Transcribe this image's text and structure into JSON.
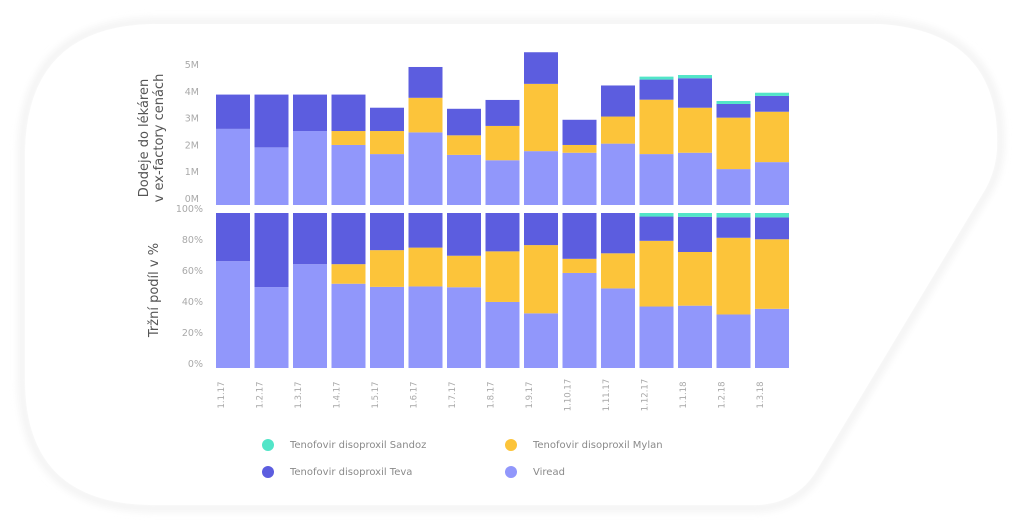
{
  "chart_data": [
    {
      "type": "bar",
      "stacked": true,
      "title": "",
      "ylabel": "Dodeje do lékáren\nv ex-factory cenách",
      "ylabel_lines": [
        "Dodeje do lékáren",
        "v ex-factory cenách"
      ],
      "ylim": [
        0,
        5
      ],
      "yticks": [
        0,
        1,
        2,
        3,
        4,
        5
      ],
      "ytick_labels": [
        "0M",
        "1M",
        "2M",
        "3M",
        "4M",
        "5M"
      ],
      "units": "millions",
      "categories": [
        "1.1.17",
        "1.2.17",
        "1.3.17",
        "1.4.17",
        "1.5.17",
        "1.6.17",
        "1.7.17",
        "1.8.17",
        "1.9.17",
        "1.10.17",
        "1.11.17",
        "1.12.17",
        "1.1.18",
        "1.2.18",
        "1.3.18"
      ],
      "series": [
        {
          "name": "Viread",
          "color": "#9197fb",
          "values": [
            2.84,
            2.15,
            2.76,
            2.24,
            1.9,
            2.71,
            1.87,
            1.67,
            2.01,
            1.95,
            2.29,
            1.9,
            1.95,
            1.34,
            1.6
          ]
        },
        {
          "name": "Tenofovir disoproxil Mylan",
          "color": "#fcc43a",
          "values": [
            0,
            0,
            0,
            0.52,
            0.86,
            1.29,
            0.73,
            1.28,
            2.51,
            0.29,
            1.01,
            2.03,
            1.68,
            1.92,
            1.88
          ]
        },
        {
          "name": "Tenofovir disoproxil Teva",
          "color": "#5c5ddf",
          "values": [
            1.28,
            1.97,
            1.36,
            1.36,
            0.87,
            1.15,
            0.99,
            0.97,
            1.18,
            0.94,
            1.16,
            0.75,
            1.1,
            0.51,
            0.59
          ]
        },
        {
          "name": "Tenofovir disoproxil Sandoz",
          "color": "#52e5c8",
          "values": [
            0,
            0,
            0,
            0,
            0,
            0,
            0,
            0,
            0,
            0,
            0,
            0.11,
            0.12,
            0.11,
            0.12
          ]
        }
      ],
      "grid": false
    },
    {
      "type": "bar",
      "stacked": true,
      "normalized": true,
      "title": "",
      "ylabel": "Tržní podíl v %",
      "ylim": [
        0,
        100
      ],
      "yticks": [
        0,
        20,
        40,
        60,
        80,
        100
      ],
      "ytick_labels": [
        "0%",
        "20%",
        "40%",
        "60%",
        "80%",
        "100%"
      ],
      "categories": [
        "1.1.17",
        "1.2.17",
        "1.3.17",
        "1.4.17",
        "1.5.17",
        "1.6.17",
        "1.7.17",
        "1.8.17",
        "1.9.17",
        "1.10.17",
        "1.11.17",
        "1.12.17",
        "1.1.18",
        "1.2.18",
        "1.3.18"
      ],
      "note": "percent shares derived from the absolute values of the first chart",
      "grid": false
    }
  ],
  "xaxis": {
    "labels": [
      "1.1.17",
      "1.2.17",
      "1.3.17",
      "1.4.17",
      "1.5.17",
      "1.6.17",
      "1.7.17",
      "1.8.17",
      "1.9.17",
      "1.10.17",
      "1.11.17",
      "1.12.17",
      "1.1.18",
      "1.2.18",
      "1.3.18"
    ]
  },
  "legend": {
    "placement": "bottom",
    "items": [
      {
        "label": "Tenofovir disoproxil Sandoz",
        "color": "#52e5c8"
      },
      {
        "label": "Tenofovir disoproxil Mylan",
        "color": "#fcc43a"
      },
      {
        "label": "Tenofovir disoproxil Teva",
        "color": "#5c5ddf"
      },
      {
        "label": "Viread",
        "color": "#9197fb"
      }
    ]
  }
}
